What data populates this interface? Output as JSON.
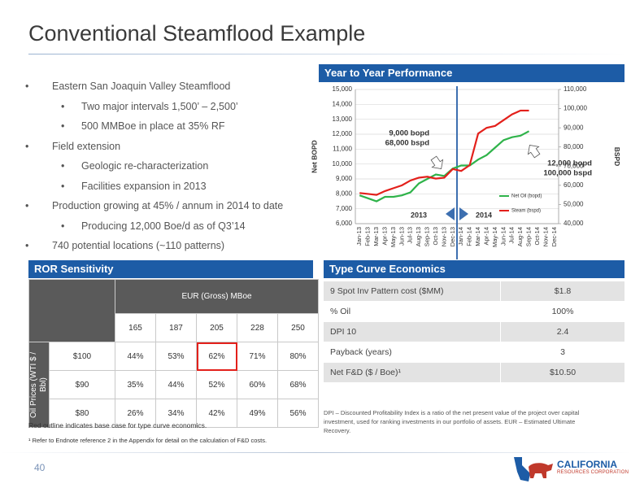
{
  "title": "Conventional Steamflood Example",
  "bullets": [
    {
      "text": "Eastern San Joaquin Valley Steamflood",
      "sub": [
        "Two major intervals 1,500’ – 2,500’",
        "500 MMBoe in place at 35% RF"
      ]
    },
    {
      "text": "Field extension",
      "sub": [
        "Geologic re-characterization",
        "Facilities expansion in 2013"
      ]
    },
    {
      "text": "Production growing at 45% / annum in 2014 to date",
      "sub": [
        "Producing 12,000 Boe/d as of Q3’14"
      ]
    },
    {
      "text": "740 potential locations (~110 patterns)",
      "sub": []
    }
  ],
  "chart_data": {
    "type": "line",
    "title": "Year to Year Performance",
    "ylabel": "Net BOPD",
    "y2label": "BSPD",
    "categories": [
      "Jan-13",
      "Feb-13",
      "Mar-13",
      "Apr-13",
      "May-13",
      "Jun-13",
      "Jul-13",
      "Aug-13",
      "Sep-13",
      "Oct-13",
      "Nov-13",
      "Dec-13",
      "Jan-14",
      "Feb-14",
      "Mar-14",
      "Apr-14",
      "May-14",
      "Jun-14",
      "Jul-14",
      "Aug-14",
      "Sep-14",
      "Oct-14",
      "Nov-14",
      "Dec-14"
    ],
    "series": [
      {
        "name": "Net Oil (bopd)",
        "color": "#2fb34a",
        "values": [
          7900,
          7700,
          7500,
          7800,
          7800,
          7900,
          8100,
          8700,
          9000,
          9300,
          9200,
          9700,
          9900,
          9900,
          10300,
          10600,
          11100,
          11600,
          11800,
          11900,
          12200,
          null,
          null,
          null
        ]
      },
      {
        "name": "Steam (bspd)",
        "color": "#e3201b",
        "axis": "y2",
        "values": [
          56000,
          55500,
          55000,
          57000,
          58500,
          60000,
          62500,
          64000,
          64500,
          63500,
          64000,
          68500,
          67500,
          70500,
          87000,
          90000,
          91000,
          94000,
          97000,
          99000,
          99000,
          null,
          null,
          null
        ]
      }
    ],
    "ylim": [
      6000,
      15000
    ],
    "yticks": [
      {
        "value": 6000,
        "label": "6,000"
      },
      {
        "value": 7000,
        "label": "7,000"
      },
      {
        "value": 8000,
        "label": "8,000"
      },
      {
        "value": 9000,
        "label": "9,000"
      },
      {
        "value": 10000,
        "label": "10,000"
      },
      {
        "value": 11000,
        "label": "11,000"
      },
      {
        "value": 12000,
        "label": "12,000"
      },
      {
        "value": 13000,
        "label": "13,000"
      },
      {
        "value": 14000,
        "label": "14,000"
      },
      {
        "value": 15000,
        "label": "15,000"
      }
    ],
    "y2lim": [
      40000,
      110000
    ],
    "y2ticks": [
      {
        "value": 40000,
        "label": "40,000"
      },
      {
        "value": 50000,
        "label": "50,000"
      },
      {
        "value": 60000,
        "label": "60,000"
      },
      {
        "value": 70000,
        "label": "70,000"
      },
      {
        "value": 80000,
        "label": "80,000"
      },
      {
        "value": 90000,
        "label": "90,000"
      },
      {
        "value": 100000,
        "label": "100,000"
      },
      {
        "value": 110000,
        "label": "110,000"
      }
    ],
    "grid": true,
    "annotations": [
      "9,000 bopd",
      "68,000 bspd",
      "12,000 bopd",
      "100,000 bspd",
      "2013",
      "2014"
    ]
  },
  "ror_sensitivity": {
    "title": "ROR Sensitivity",
    "column_header": "EUR (Gross) MBoe",
    "row_header": "Oil Prices (WTI $ / Bbl)",
    "columns": [
      "165",
      "187",
      "205",
      "228",
      "250"
    ],
    "rows": [
      {
        "price": "$100",
        "values": [
          "44%",
          "53%",
          "62%",
          "71%",
          "80%"
        ]
      },
      {
        "price": "$90",
        "values": [
          "35%",
          "44%",
          "52%",
          "60%",
          "68%"
        ]
      },
      {
        "price": "$80",
        "values": [
          "26%",
          "34%",
          "42%",
          "49%",
          "56%"
        ]
      }
    ],
    "note": "Red outline indicates base case for type curve economics."
  },
  "type_curve": {
    "title": "Type Curve Economics",
    "rows": [
      [
        "9 Spot Inv Pattern cost ($MM)",
        "$1.8"
      ],
      [
        "% Oil",
        "100%"
      ],
      [
        "DPI 10",
        "2.4"
      ],
      [
        "Payback (years)",
        "3"
      ],
      [
        "Net F&D ($ / Boe)¹",
        "$10.50"
      ]
    ],
    "note": "DPI – Discounted Profitability Index is a ratio of the net present value of the project over capital investment, used for ranking investments in our portfolio of assets. EUR – Estimated Ultimate Recovery."
  },
  "footnote": "¹ Refer to Endnote reference 2 in the Appendix for detail on the calculation of F&D costs.",
  "page_number": "40",
  "logo": {
    "name": "CALIFORNIA",
    "tagline": "RESOURCES CORPORATION"
  }
}
